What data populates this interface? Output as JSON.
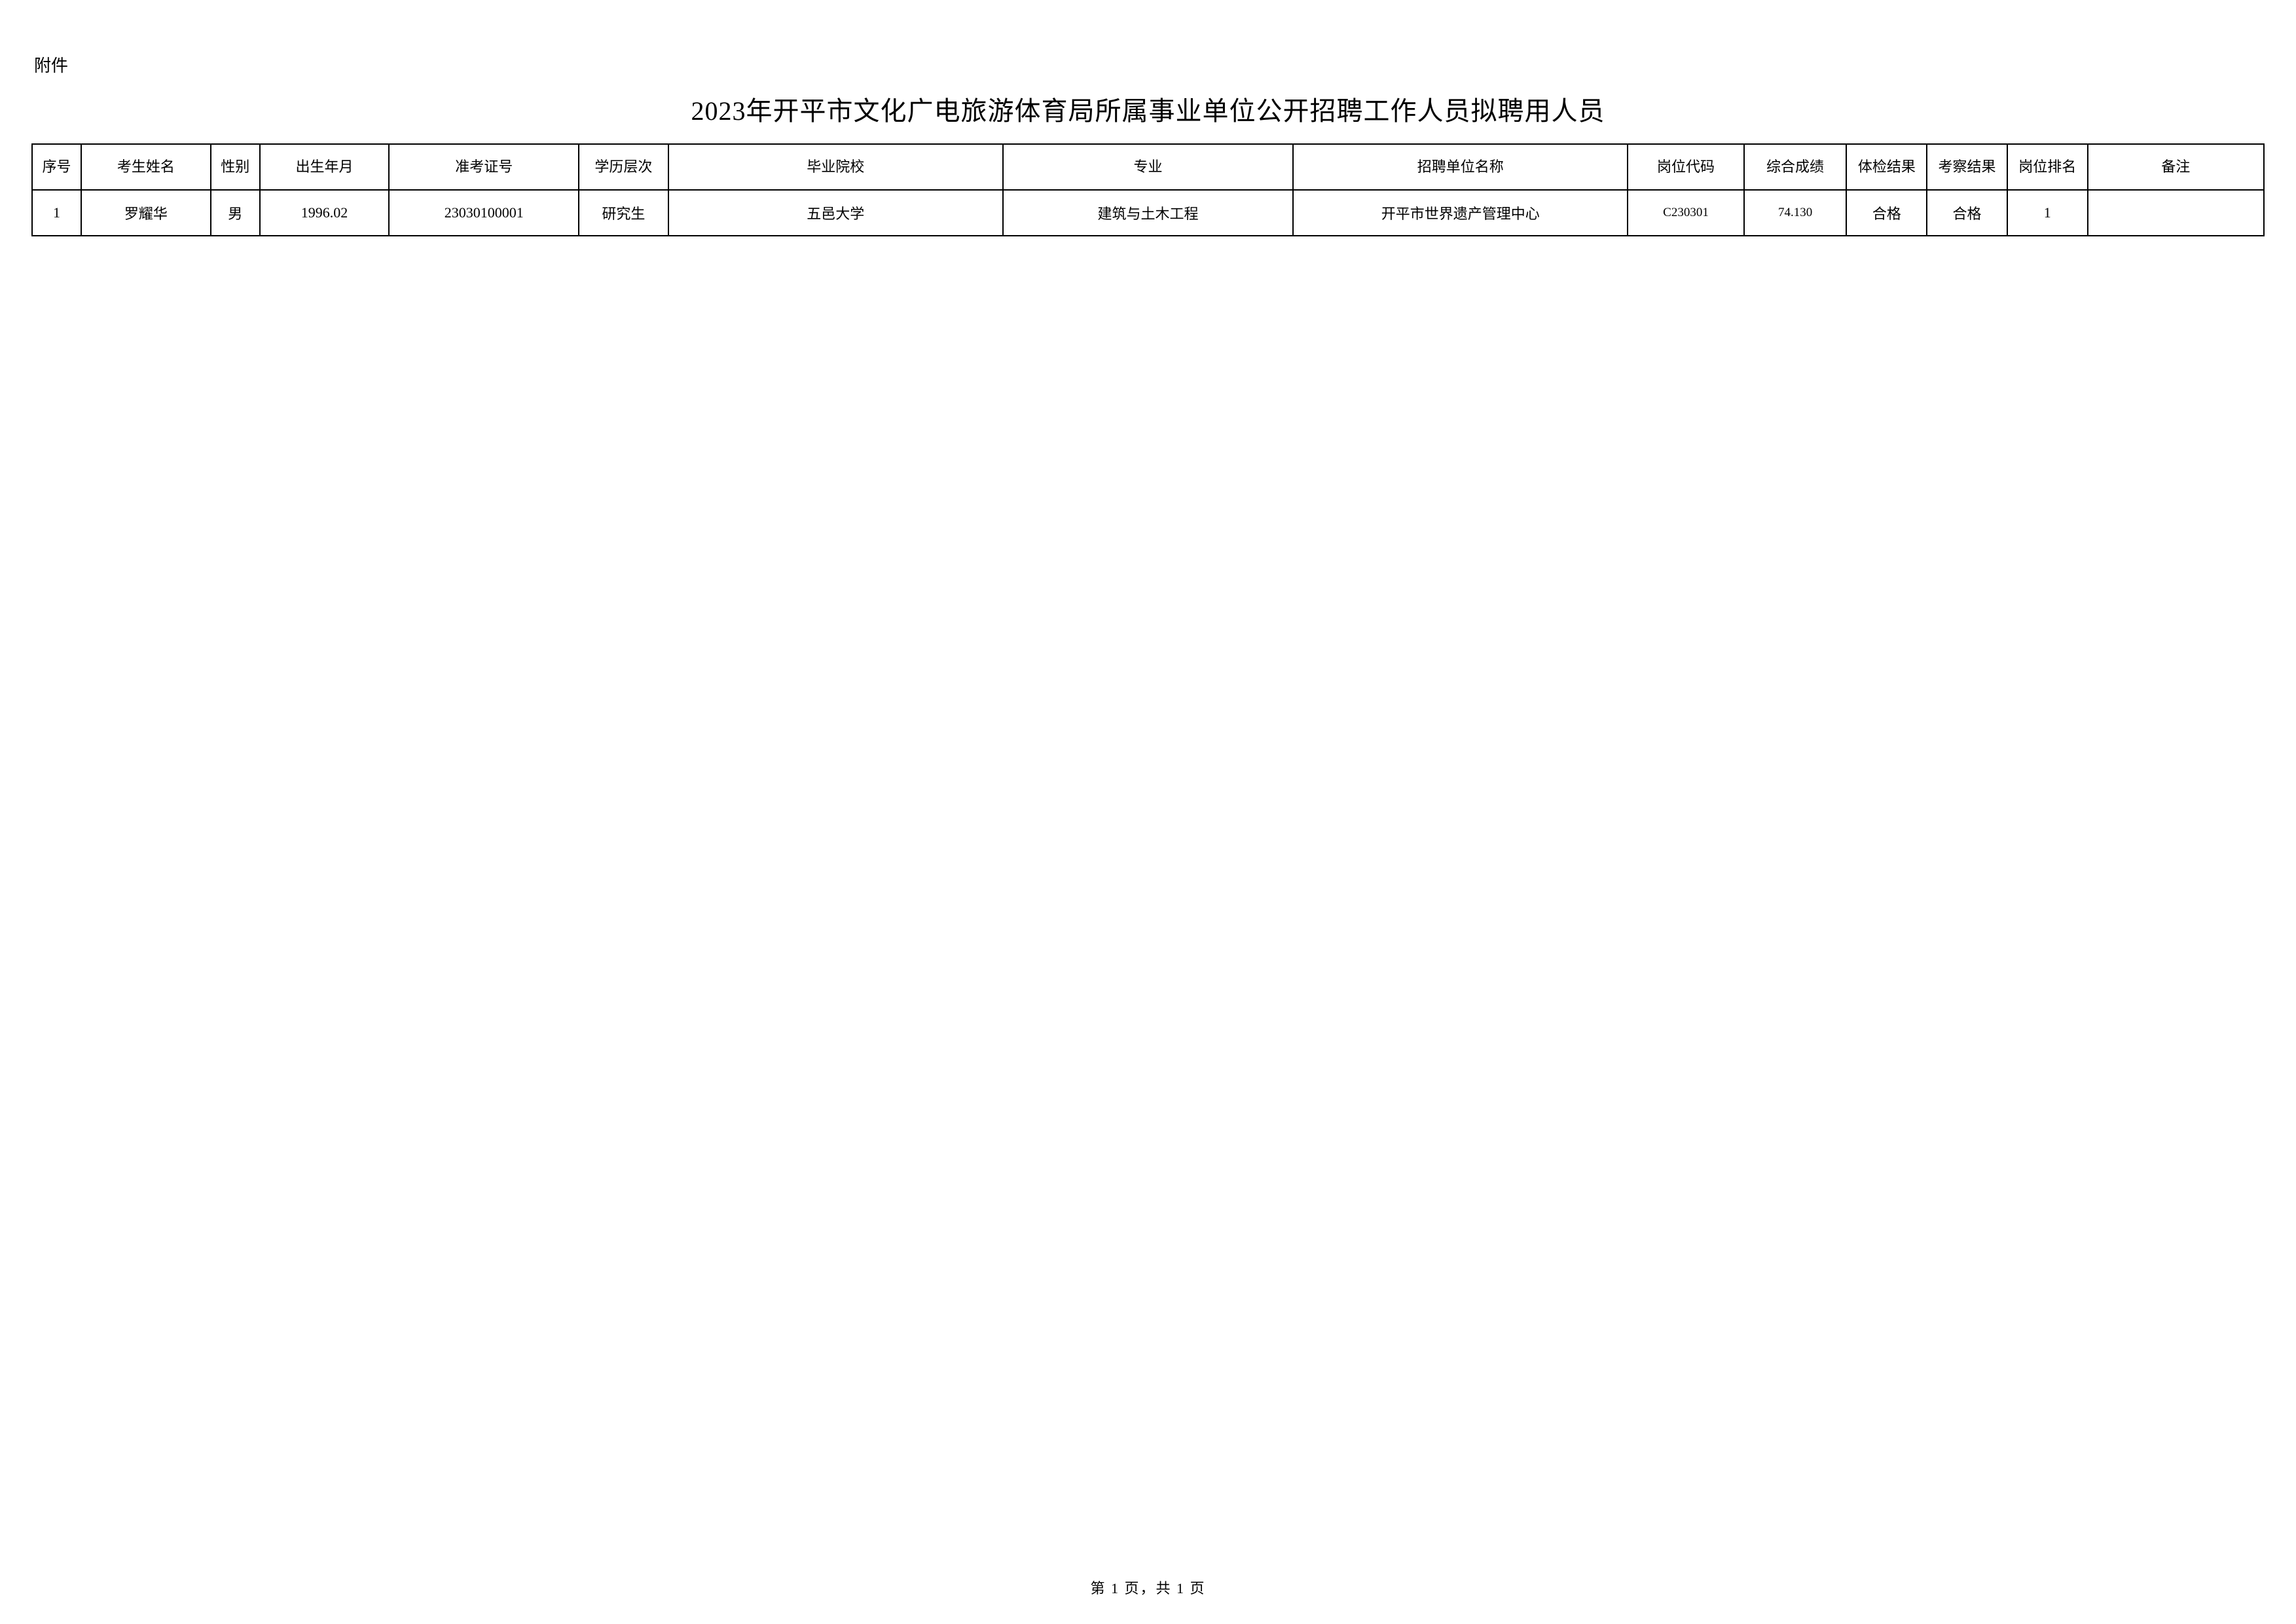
{
  "document": {
    "attachment_label": "附件",
    "title": "2023年开平市文化广电旅游体育局所属事业单位公开招聘工作人员拟聘用人员",
    "page_footer": "第 1 页，共 1 页"
  },
  "table": {
    "type": "table",
    "border_color": "#000000",
    "background_color": "#ffffff",
    "text_color": "#000000",
    "header_fontsize": 22,
    "cell_fontsize": 22,
    "small_fontsize": 19,
    "columns": [
      {
        "key": "seq",
        "label": "序号",
        "width_pct": 2.2
      },
      {
        "key": "name",
        "label": "考生姓名",
        "width_pct": 5.8
      },
      {
        "key": "gender",
        "label": "性别",
        "width_pct": 2.2
      },
      {
        "key": "birth",
        "label": "出生年月",
        "width_pct": 5.8
      },
      {
        "key": "exam_no",
        "label": "准考证号",
        "width_pct": 8.5
      },
      {
        "key": "edu",
        "label": "学历层次",
        "width_pct": 4.0
      },
      {
        "key": "school",
        "label": "毕业院校",
        "width_pct": 15.0
      },
      {
        "key": "major",
        "label": "专业",
        "width_pct": 13.0
      },
      {
        "key": "unit",
        "label": "招聘单位名称",
        "width_pct": 15.0
      },
      {
        "key": "pos_code",
        "label": "岗位代码",
        "width_pct": 5.2
      },
      {
        "key": "score",
        "label": "综合成绩",
        "width_pct": 4.6
      },
      {
        "key": "physical",
        "label": "体检结果",
        "width_pct": 3.6
      },
      {
        "key": "inspect",
        "label": "考察结果",
        "width_pct": 3.6
      },
      {
        "key": "rank",
        "label": "岗位排名",
        "width_pct": 3.6
      },
      {
        "key": "remark",
        "label": "备注",
        "width_pct": 7.9
      }
    ],
    "rows": [
      {
        "seq": "1",
        "name": "罗耀华",
        "gender": "男",
        "birth": "1996.02",
        "exam_no": "23030100001",
        "edu": "研究生",
        "school": "五邑大学",
        "major": "建筑与土木工程",
        "unit": "开平市世界遗产管理中心",
        "pos_code": "C230301",
        "score": "74.130",
        "physical": "合格",
        "inspect": "合格",
        "rank": "1",
        "remark": ""
      }
    ]
  }
}
